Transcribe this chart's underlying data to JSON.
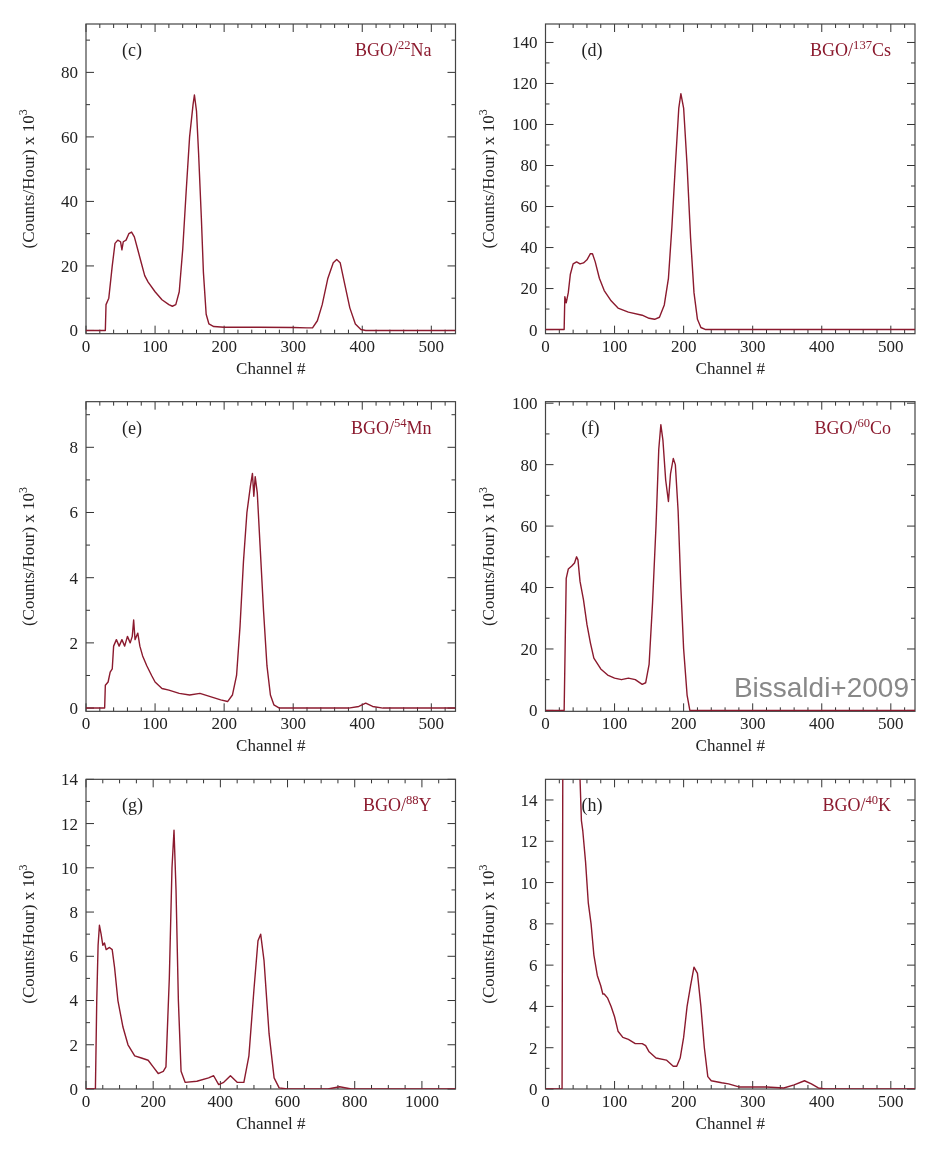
{
  "chart_data": [
    {
      "type": "line",
      "title": "BGO/$^{22}$Na",
      "annotations": [
        "(c)"
      ],
      "xlabel": "Channel #",
      "ylabel": "(Counts/Hour) x 10$^{3}$",
      "xlim": [
        0,
        535
      ],
      "ylim": [
        -1,
        95
      ],
      "xticks": [
        0,
        {
          "value": 20,
          "label": null
        },
        {
          "value": 40,
          "label": null
        },
        {
          "value": 60,
          "label": null
        },
        {
          "value": 80,
          "label": null
        },
        100,
        {
          "value": 120,
          "label": null
        },
        {
          "value": 140,
          "label": null
        },
        {
          "value": 160,
          "label": null
        },
        {
          "value": 180,
          "label": null
        },
        200,
        {
          "value": 220,
          "label": null
        },
        {
          "value": 240,
          "label": null
        },
        {
          "value": 260,
          "label": null
        },
        {
          "value": 280,
          "label": null
        },
        300,
        {
          "value": 320,
          "label": null
        },
        {
          "value": 340,
          "label": null
        },
        {
          "value": 360,
          "label": null
        },
        {
          "value": 380,
          "label": null
        },
        400,
        {
          "value": 420,
          "label": null
        },
        {
          "value": 440,
          "label": null
        },
        {
          "value": 460,
          "label": null
        },
        {
          "value": 480,
          "label": null
        },
        500,
        {
          "value": 520,
          "label": null
        }
      ],
      "yticks": [
        0,
        {
          "value": 10,
          "label": null
        },
        20,
        {
          "value": 30,
          "label": null
        },
        40,
        {
          "value": 50,
          "label": null
        },
        60,
        {
          "value": 70,
          "label": null
        },
        80,
        {
          "value": 90,
          "label": null
        }
      ],
      "x": [
        0,
        28,
        29,
        33,
        38,
        42,
        46,
        50,
        52,
        54,
        58,
        62,
        66,
        70,
        75,
        80,
        85,
        90,
        100,
        110,
        120,
        125,
        130,
        135,
        140,
        145,
        150,
        155,
        157,
        160,
        163,
        167,
        170,
        174,
        178,
        185,
        200,
        250,
        300,
        320,
        328,
        335,
        342,
        350,
        358,
        363,
        368,
        375,
        382,
        390,
        398,
        405,
        535
      ],
      "series": [
        {
          "color": "#8b1a2e",
          "values": [
            0,
            0,
            8,
            10,
            20,
            27,
            28,
            27.5,
            25,
            27.5,
            28,
            30,
            30.5,
            29,
            25,
            21,
            17,
            15,
            12,
            9.5,
            8,
            7.5,
            8,
            12,
            25,
            43,
            60,
            70,
            73,
            68,
            55,
            35,
            18,
            5,
            2,
            1.2,
            1,
            1,
            0.9,
            0.8,
            0.8,
            3,
            8,
            16,
            21,
            22,
            21,
            14,
            7,
            2,
            0.3,
            0,
            0
          ]
        }
      ]
    },
    {
      "type": "line",
      "title": "BGO/$^{137}$Cs",
      "annotations": [
        "(d)"
      ],
      "xlabel": "Channel #",
      "ylabel": "(Counts/Hour) x 10$^{3}$",
      "xlim": [
        0,
        535
      ],
      "ylim": [
        -2,
        149
      ],
      "xticks": [
        0,
        {
          "value": 20,
          "label": null
        },
        {
          "value": 40,
          "label": null
        },
        {
          "value": 60,
          "label": null
        },
        {
          "value": 80,
          "label": null
        },
        100,
        {
          "value": 120,
          "label": null
        },
        {
          "value": 140,
          "label": null
        },
        {
          "value": 160,
          "label": null
        },
        {
          "value": 180,
          "label": null
        },
        200,
        {
          "value": 220,
          "label": null
        },
        {
          "value": 240,
          "label": null
        },
        {
          "value": 260,
          "label": null
        },
        {
          "value": 280,
          "label": null
        },
        300,
        {
          "value": 320,
          "label": null
        },
        {
          "value": 340,
          "label": null
        },
        {
          "value": 360,
          "label": null
        },
        {
          "value": 380,
          "label": null
        },
        400,
        {
          "value": 420,
          "label": null
        },
        {
          "value": 440,
          "label": null
        },
        {
          "value": 460,
          "label": null
        },
        {
          "value": 480,
          "label": null
        },
        500,
        {
          "value": 520,
          "label": null
        }
      ],
      "yticks": [
        0,
        {
          "value": 10,
          "label": null
        },
        20,
        {
          "value": 30,
          "label": null
        },
        40,
        {
          "value": 50,
          "label": null
        },
        60,
        {
          "value": 70,
          "label": null
        },
        80,
        {
          "value": 90,
          "label": null
        },
        100,
        {
          "value": 110,
          "label": null
        },
        120,
        {
          "value": 130,
          "label": null
        },
        140
      ],
      "x": [
        0,
        27,
        28,
        30,
        33,
        36,
        40,
        45,
        50,
        55,
        60,
        65,
        68,
        72,
        78,
        85,
        95,
        105,
        120,
        140,
        150,
        158,
        165,
        172,
        178,
        183,
        188,
        193,
        196,
        200,
        205,
        210,
        215,
        220,
        225,
        232,
        535
      ],
      "series": [
        {
          "color": "#8b1a2e",
          "values": [
            0,
            0,
            16,
            13,
            18,
            27,
            32,
            33,
            32,
            32.5,
            34,
            37,
            37,
            33,
            25,
            19,
            14,
            10.5,
            8.5,
            7,
            5.5,
            5,
            6,
            12,
            25,
            50,
            80,
            108,
            115,
            108,
            80,
            45,
            18,
            5,
            1,
            0,
            0
          ]
        }
      ]
    },
    {
      "type": "line",
      "title": "BGO/$^{54}$Mn",
      "annotations": [
        "(e)"
      ],
      "xlabel": "Channel #",
      "ylabel": "(Counts/Hour) x 10$^{3}$",
      "xlim": [
        0,
        535
      ],
      "ylim": [
        -0.1,
        9.4
      ],
      "xticks": [
        0,
        {
          "value": 20,
          "label": null
        },
        {
          "value": 40,
          "label": null
        },
        {
          "value": 60,
          "label": null
        },
        {
          "value": 80,
          "label": null
        },
        100,
        {
          "value": 120,
          "label": null
        },
        {
          "value": 140,
          "label": null
        },
        {
          "value": 160,
          "label": null
        },
        {
          "value": 180,
          "label": null
        },
        200,
        {
          "value": 220,
          "label": null
        },
        {
          "value": 240,
          "label": null
        },
        {
          "value": 260,
          "label": null
        },
        {
          "value": 280,
          "label": null
        },
        300,
        {
          "value": 320,
          "label": null
        },
        {
          "value": 340,
          "label": null
        },
        {
          "value": 360,
          "label": null
        },
        {
          "value": 380,
          "label": null
        },
        400,
        {
          "value": 420,
          "label": null
        },
        {
          "value": 440,
          "label": null
        },
        {
          "value": 460,
          "label": null
        },
        {
          "value": 480,
          "label": null
        },
        500,
        {
          "value": 520,
          "label": null
        }
      ],
      "yticks": [
        0,
        {
          "value": 1,
          "label": null
        },
        2,
        {
          "value": 3,
          "label": null
        },
        4,
        {
          "value": 5,
          "label": null
        },
        6,
        {
          "value": 7,
          "label": null
        },
        8,
        {
          "value": 9,
          "label": null
        }
      ],
      "x": [
        0,
        27,
        28,
        32,
        35,
        38,
        40,
        44,
        48,
        52,
        56,
        60,
        64,
        67,
        69,
        71,
        75,
        78,
        82,
        88,
        95,
        100,
        110,
        120,
        135,
        150,
        165,
        180,
        195,
        205,
        212,
        218,
        223,
        228,
        233,
        238,
        241,
        243,
        245,
        248,
        252,
        257,
        262,
        267,
        272,
        280,
        380,
        395,
        405,
        415,
        430,
        535
      ],
      "series": [
        {
          "color": "#8b1a2e",
          "values": [
            0,
            0,
            0.7,
            0.8,
            1.1,
            1.2,
            1.9,
            2.1,
            1.9,
            2.1,
            1.9,
            2.2,
            2.0,
            2.2,
            2.7,
            2.1,
            2.3,
            1.9,
            1.6,
            1.3,
            1.0,
            0.8,
            0.6,
            0.55,
            0.45,
            0.4,
            0.45,
            0.35,
            0.25,
            0.2,
            0.4,
            1,
            2.5,
            4.5,
            6,
            6.8,
            7.2,
            6.5,
            7.1,
            6.6,
            5,
            3,
            1.3,
            0.4,
            0.1,
            0,
            0,
            0.05,
            0.15,
            0.05,
            0,
            0
          ]
        }
      ]
    },
    {
      "type": "line",
      "title": "BGO/$^{60}$Co",
      "annotations": [
        "(f)",
        "Bissaldi+2009"
      ],
      "xlabel": "Channel #",
      "ylabel": "(Counts/Hour) x 10$^{3}$",
      "xlim": [
        0,
        535
      ],
      "ylim": [
        -0.3,
        100.5
      ],
      "xticks": [
        0,
        {
          "value": 20,
          "label": null
        },
        {
          "value": 40,
          "label": null
        },
        {
          "value": 60,
          "label": null
        },
        {
          "value": 80,
          "label": null
        },
        100,
        {
          "value": 120,
          "label": null
        },
        {
          "value": 140,
          "label": null
        },
        {
          "value": 160,
          "label": null
        },
        {
          "value": 180,
          "label": null
        },
        200,
        {
          "value": 220,
          "label": null
        },
        {
          "value": 240,
          "label": null
        },
        {
          "value": 260,
          "label": null
        },
        {
          "value": 280,
          "label": null
        },
        300,
        {
          "value": 320,
          "label": null
        },
        {
          "value": 340,
          "label": null
        },
        {
          "value": 360,
          "label": null
        },
        {
          "value": 380,
          "label": null
        },
        400,
        {
          "value": 420,
          "label": null
        },
        {
          "value": 440,
          "label": null
        },
        {
          "value": 460,
          "label": null
        },
        {
          "value": 480,
          "label": null
        },
        500,
        {
          "value": 520,
          "label": null
        }
      ],
      "yticks": [
        0,
        {
          "value": 10,
          "label": null
        },
        20,
        {
          "value": 30,
          "label": null
        },
        40,
        {
          "value": 50,
          "label": null
        },
        60,
        {
          "value": 70,
          "label": null
        },
        80,
        {
          "value": 90,
          "label": null
        },
        100
      ],
      "x": [
        0,
        27,
        30,
        33,
        38,
        42,
        45,
        47,
        50,
        55,
        60,
        65,
        70,
        80,
        90,
        100,
        110,
        120,
        130,
        140,
        145,
        150,
        155,
        160,
        164,
        167,
        170,
        174,
        178,
        181,
        185,
        188,
        192,
        196,
        200,
        205,
        209,
        535
      ],
      "series": [
        {
          "color": "#8b1a2e",
          "values": [
            0,
            0,
            43,
            46,
            47,
            48,
            50,
            49,
            42,
            36,
            28,
            22,
            17,
            13.5,
            11.5,
            10.5,
            10,
            10.5,
            10,
            8.5,
            9,
            15,
            35,
            60,
            85,
            93,
            88,
            75,
            68,
            77,
            82,
            80,
            65,
            40,
            20,
            5,
            0,
            0
          ]
        }
      ]
    },
    {
      "type": "line",
      "title": "BGO/$^{88}$Y",
      "annotations": [
        "(g)"
      ],
      "xlabel": "Channel #",
      "ylabel": "(Counts/Hour) x 10$^{3}$",
      "xlim": [
        0,
        1100
      ],
      "ylim": [
        0,
        14
      ],
      "xticks": [
        0,
        {
          "value": 50,
          "label": null
        },
        {
          "value": 100,
          "label": null
        },
        {
          "value": 150,
          "label": null
        },
        200,
        {
          "value": 250,
          "label": null
        },
        {
          "value": 300,
          "label": null
        },
        {
          "value": 350,
          "label": null
        },
        400,
        {
          "value": 450,
          "label": null
        },
        {
          "value": 500,
          "label": null
        },
        {
          "value": 550,
          "label": null
        },
        600,
        {
          "value": 650,
          "label": null
        },
        {
          "value": 700,
          "label": null
        },
        {
          "value": 750,
          "label": null
        },
        800,
        {
          "value": 850,
          "label": null
        },
        {
          "value": 900,
          "label": null
        },
        {
          "value": 950,
          "label": null
        },
        1000,
        {
          "value": 1050,
          "label": null
        }
      ],
      "yticks": [
        0,
        {
          "value": 1,
          "label": null
        },
        2,
        {
          "value": 3,
          "label": null
        },
        4,
        {
          "value": 5,
          "label": null
        },
        6,
        {
          "value": 7,
          "label": null
        },
        8,
        {
          "value": 9,
          "label": null
        },
        10,
        {
          "value": 11,
          "label": null
        },
        12,
        {
          "value": 13,
          "label": null
        },
        14
      ],
      "x": [
        0,
        28,
        32,
        36,
        40,
        45,
        50,
        55,
        60,
        70,
        78,
        85,
        95,
        110,
        125,
        145,
        165,
        185,
        200,
        215,
        230,
        238,
        248,
        256,
        262,
        268,
        275,
        283,
        295,
        330,
        365,
        380,
        395,
        410,
        430,
        450,
        470,
        485,
        500,
        512,
        520,
        530,
        545,
        560,
        575,
        600,
        720,
        755,
        790,
        1100
      ],
      "series": [
        {
          "color": "#8b1a2e",
          "values": [
            0,
            0,
            4,
            6.5,
            7.4,
            7.0,
            6.5,
            6.6,
            6.3,
            6.4,
            6.3,
            5.5,
            4,
            2.8,
            2,
            1.5,
            1.4,
            1.3,
            1,
            0.7,
            0.8,
            1,
            5,
            10,
            11.7,
            9,
            4,
            0.8,
            0.3,
            0.35,
            0.5,
            0.6,
            0.2,
            0.3,
            0.6,
            0.3,
            0.3,
            1.5,
            4.5,
            6.7,
            7,
            5.8,
            2.5,
            0.5,
            0.05,
            0,
            0,
            0.1,
            0,
            0
          ]
        }
      ]
    },
    {
      "type": "line",
      "title": "BGO/$^{40}$K",
      "annotations": [
        "(h)"
      ],
      "xlabel": "Channel #",
      "ylabel": "(Counts/Hour) x 10$^{3}$",
      "xlim": [
        0,
        535
      ],
      "ylim": [
        0,
        15
      ],
      "xticks": [
        0,
        {
          "value": 20,
          "label": null
        },
        {
          "value": 40,
          "label": null
        },
        {
          "value": 60,
          "label": null
        },
        {
          "value": 80,
          "label": null
        },
        100,
        {
          "value": 120,
          "label": null
        },
        {
          "value": 140,
          "label": null
        },
        {
          "value": 160,
          "label": null
        },
        {
          "value": 180,
          "label": null
        },
        200,
        {
          "value": 220,
          "label": null
        },
        {
          "value": 240,
          "label": null
        },
        {
          "value": 260,
          "label": null
        },
        {
          "value": 280,
          "label": null
        },
        300,
        {
          "value": 320,
          "label": null
        },
        {
          "value": 340,
          "label": null
        },
        {
          "value": 360,
          "label": null
        },
        {
          "value": 380,
          "label": null
        },
        400,
        {
          "value": 420,
          "label": null
        },
        {
          "value": 440,
          "label": null
        },
        {
          "value": 460,
          "label": null
        },
        {
          "value": 480,
          "label": null
        },
        500,
        {
          "value": 520,
          "label": null
        }
      ],
      "yticks": [
        0,
        {
          "value": 1,
          "label": null
        },
        2,
        {
          "value": 3,
          "label": null
        },
        4,
        {
          "value": 5,
          "label": null
        },
        6,
        {
          "value": 7,
          "label": null
        },
        8,
        {
          "value": 9,
          "label": null
        },
        10,
        {
          "value": 11,
          "label": null
        },
        12,
        {
          "value": 13,
          "label": null
        },
        14
      ],
      "x": [
        50,
        52,
        54,
        58,
        62,
        66,
        70,
        75,
        80,
        83,
        85,
        90,
        95,
        100,
        105,
        112,
        120,
        130,
        140,
        145,
        150,
        160,
        175,
        185,
        190,
        195,
        200,
        205,
        210,
        215,
        220,
        225,
        230,
        235,
        240,
        255,
        265,
        280,
        300,
        320,
        345,
        360,
        375,
        385,
        395,
        405,
        535
      ],
      "series": [
        {
          "color": "#8b1a2e",
          "x": [
            0,
            24,
            25
          ],
          "values": [
            0,
            0,
            15
          ]
        },
        {
          "color": "#8b1a2e",
          "values": [
            15,
            13,
            12.5,
            11,
            9,
            8,
            6.5,
            5.5,
            5,
            4.6,
            4.6,
            4.4,
            4,
            3.5,
            2.8,
            2.5,
            2.4,
            2.2,
            2.2,
            2.1,
            1.8,
            1.5,
            1.4,
            1.1,
            1.1,
            1.5,
            2.5,
            4,
            5,
            5.9,
            5.6,
            4,
            2,
            0.6,
            0.4,
            0.3,
            0.25,
            0.1,
            0.1,
            0.1,
            0.05,
            0.2,
            0.4,
            0.25,
            0.05,
            0,
            0
          ]
        }
      ]
    }
  ]
}
